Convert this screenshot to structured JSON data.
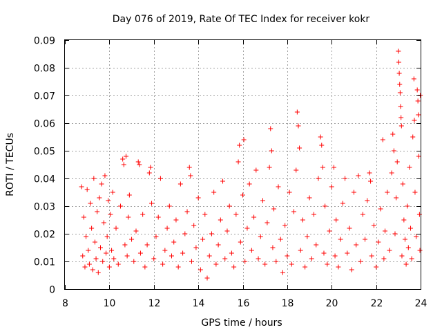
{
  "chart_data": {
    "type": "scatter",
    "title": "Day 076 of 2019, Rate Of TEC Index for receiver kokr",
    "xlabel": "GPS time / hours",
    "ylabel": "ROTI / TECUs",
    "xlim": [
      8,
      24
    ],
    "ylim": [
      0,
      0.09
    ],
    "xticks": [
      8,
      10,
      12,
      14,
      16,
      18,
      20,
      22,
      24
    ],
    "xtick_labels": [
      "8",
      "10",
      "12",
      "14",
      "16",
      "18",
      "20",
      "22",
      "24"
    ],
    "yticks": [
      0,
      0.01,
      0.02,
      0.03,
      0.04,
      0.05,
      0.06,
      0.07,
      0.08,
      0.09
    ],
    "ytick_labels": [
      "0",
      "0.01",
      "0.02",
      "0.03",
      "0.04",
      "0.05",
      "0.06",
      "0.07",
      "0.08",
      "0.09"
    ],
    "grid": true,
    "marker": "+",
    "color": "#ff0000",
    "series": [
      {
        "name": "ROTI",
        "points": [
          [
            8.75,
            0.037
          ],
          [
            8.8,
            0.012
          ],
          [
            8.85,
            0.026
          ],
          [
            8.9,
            0.008
          ],
          [
            8.95,
            0.019
          ],
          [
            9.0,
            0.036
          ],
          [
            9.05,
            0.014
          ],
          [
            9.1,
            0.009
          ],
          [
            9.15,
            0.031
          ],
          [
            9.2,
            0.022
          ],
          [
            9.25,
            0.007
          ],
          [
            9.3,
            0.04
          ],
          [
            9.35,
            0.017
          ],
          [
            9.4,
            0.011
          ],
          [
            9.45,
            0.028
          ],
          [
            9.5,
            0.006
          ],
          [
            9.55,
            0.033
          ],
          [
            9.6,
            0.015
          ],
          [
            9.65,
            0.038
          ],
          [
            9.7,
            0.01
          ],
          [
            9.75,
            0.024
          ],
          [
            9.8,
            0.041
          ],
          [
            9.85,
            0.013
          ],
          [
            9.9,
            0.019
          ],
          [
            9.95,
            0.032
          ],
          [
            10.0,
            0.008
          ],
          [
            10.05,
            0.027
          ],
          [
            10.1,
            0.014
          ],
          [
            10.15,
            0.035
          ],
          [
            10.2,
            0.011
          ],
          [
            10.3,
            0.022
          ],
          [
            10.4,
            0.009
          ],
          [
            10.5,
            0.03
          ],
          [
            10.6,
            0.047
          ],
          [
            10.65,
            0.045
          ],
          [
            10.7,
            0.016
          ],
          [
            10.75,
            0.048
          ],
          [
            10.8,
            0.012
          ],
          [
            10.85,
            0.026
          ],
          [
            10.9,
            0.034
          ],
          [
            11.0,
            0.018
          ],
          [
            11.1,
            0.01
          ],
          [
            11.2,
            0.021
          ],
          [
            11.3,
            0.046
          ],
          [
            11.35,
            0.045
          ],
          [
            11.4,
            0.013
          ],
          [
            11.5,
            0.027
          ],
          [
            11.6,
            0.008
          ],
          [
            11.7,
            0.016
          ],
          [
            11.8,
            0.042
          ],
          [
            11.85,
            0.044
          ],
          [
            11.9,
            0.031
          ],
          [
            12.0,
            0.011
          ],
          [
            12.1,
            0.019
          ],
          [
            12.2,
            0.026
          ],
          [
            12.3,
            0.04
          ],
          [
            12.4,
            0.009
          ],
          [
            12.5,
            0.014
          ],
          [
            12.6,
            0.022
          ],
          [
            12.7,
            0.03
          ],
          [
            12.8,
            0.012
          ],
          [
            12.9,
            0.017
          ],
          [
            13.0,
            0.025
          ],
          [
            13.1,
            0.008
          ],
          [
            13.2,
            0.038
          ],
          [
            13.3,
            0.013
          ],
          [
            13.4,
            0.02
          ],
          [
            13.5,
            0.028
          ],
          [
            13.6,
            0.044
          ],
          [
            13.65,
            0.041
          ],
          [
            13.7,
            0.01
          ],
          [
            13.8,
            0.023
          ],
          [
            13.9,
            0.015
          ],
          [
            14.0,
            0.033
          ],
          [
            14.1,
            0.007
          ],
          [
            14.2,
            0.018
          ],
          [
            14.3,
            0.027
          ],
          [
            14.4,
            0.004
          ],
          [
            14.5,
            0.012
          ],
          [
            14.6,
            0.02
          ],
          [
            14.7,
            0.035
          ],
          [
            14.8,
            0.009
          ],
          [
            14.9,
            0.016
          ],
          [
            15.0,
            0.025
          ],
          [
            15.1,
            0.039
          ],
          [
            15.2,
            0.011
          ],
          [
            15.3,
            0.021
          ],
          [
            15.4,
            0.03
          ],
          [
            15.5,
            0.013
          ],
          [
            15.6,
            0.008
          ],
          [
            15.7,
            0.027
          ],
          [
            15.8,
            0.046
          ],
          [
            15.85,
            0.052
          ],
          [
            15.9,
            0.017
          ],
          [
            16.0,
            0.034
          ],
          [
            16.05,
            0.054
          ],
          [
            16.1,
            0.01
          ],
          [
            16.2,
            0.022
          ],
          [
            16.3,
            0.038
          ],
          [
            16.4,
            0.014
          ],
          [
            16.5,
            0.026
          ],
          [
            16.6,
            0.043
          ],
          [
            16.7,
            0.011
          ],
          [
            16.8,
            0.019
          ],
          [
            16.9,
            0.032
          ],
          [
            17.0,
            0.009
          ],
          [
            17.1,
            0.024
          ],
          [
            17.2,
            0.044
          ],
          [
            17.25,
            0.058
          ],
          [
            17.3,
            0.05
          ],
          [
            17.35,
            0.015
          ],
          [
            17.4,
            0.029
          ],
          [
            17.5,
            0.01
          ],
          [
            17.6,
            0.037
          ],
          [
            17.7,
            0.018
          ],
          [
            17.8,
            0.006
          ],
          [
            17.9,
            0.023
          ],
          [
            18.0,
            0.012
          ],
          [
            18.1,
            0.035
          ],
          [
            18.2,
            0.009
          ],
          [
            18.3,
            0.028
          ],
          [
            18.4,
            0.043
          ],
          [
            18.45,
            0.064
          ],
          [
            18.5,
            0.059
          ],
          [
            18.55,
            0.051
          ],
          [
            18.6,
            0.014
          ],
          [
            18.7,
            0.025
          ],
          [
            18.8,
            0.008
          ],
          [
            18.9,
            0.019
          ],
          [
            19.0,
            0.033
          ],
          [
            19.1,
            0.011
          ],
          [
            19.2,
            0.027
          ],
          [
            19.3,
            0.016
          ],
          [
            19.4,
            0.04
          ],
          [
            19.5,
            0.055
          ],
          [
            19.55,
            0.052
          ],
          [
            19.6,
            0.044
          ],
          [
            19.65,
            0.013
          ],
          [
            19.7,
            0.03
          ],
          [
            19.8,
            0.009
          ],
          [
            19.9,
            0.021
          ],
          [
            20.0,
            0.037
          ],
          [
            20.1,
            0.044
          ],
          [
            20.15,
            0.012
          ],
          [
            20.2,
            0.025
          ],
          [
            20.3,
            0.008
          ],
          [
            20.4,
            0.018
          ],
          [
            20.5,
            0.031
          ],
          [
            20.6,
            0.04
          ],
          [
            20.7,
            0.013
          ],
          [
            20.8,
            0.022
          ],
          [
            20.9,
            0.007
          ],
          [
            21.0,
            0.035
          ],
          [
            21.1,
            0.016
          ],
          [
            21.2,
            0.041
          ],
          [
            21.3,
            0.01
          ],
          [
            21.4,
            0.027
          ],
          [
            21.5,
            0.018
          ],
          [
            21.6,
            0.032
          ],
          [
            21.7,
            0.042
          ],
          [
            21.75,
            0.039
          ],
          [
            21.8,
            0.012
          ],
          [
            21.9,
            0.023
          ],
          [
            22.0,
            0.008
          ],
          [
            22.1,
            0.017
          ],
          [
            22.2,
            0.029
          ],
          [
            22.3,
            0.054
          ],
          [
            22.35,
            0.011
          ],
          [
            22.4,
            0.021
          ],
          [
            22.5,
            0.035
          ],
          [
            22.6,
            0.014
          ],
          [
            22.7,
            0.042
          ],
          [
            22.75,
            0.056
          ],
          [
            22.8,
            0.05
          ],
          [
            22.85,
            0.02
          ],
          [
            22.9,
            0.033
          ],
          [
            22.95,
            0.046
          ],
          [
            23.0,
            0.086
          ],
          [
            23.02,
            0.082
          ],
          [
            23.04,
            0.078
          ],
          [
            23.06,
            0.074
          ],
          [
            23.08,
            0.071
          ],
          [
            23.1,
            0.066
          ],
          [
            23.12,
            0.062
          ],
          [
            23.14,
            0.059
          ],
          [
            23.16,
            0.012
          ],
          [
            23.2,
            0.038
          ],
          [
            23.25,
            0.025
          ],
          [
            23.3,
            0.018
          ],
          [
            23.35,
            0.009
          ],
          [
            23.4,
            0.03
          ],
          [
            23.45,
            0.015
          ],
          [
            23.5,
            0.044
          ],
          [
            23.55,
            0.022
          ],
          [
            23.6,
            0.011
          ],
          [
            23.65,
            0.055
          ],
          [
            23.7,
            0.076
          ],
          [
            23.72,
            0.061
          ],
          [
            23.75,
            0.035
          ],
          [
            23.8,
            0.019
          ],
          [
            23.85,
            0.072
          ],
          [
            23.88,
            0.068
          ],
          [
            23.9,
            0.063
          ],
          [
            23.92,
            0.048
          ],
          [
            23.95,
            0.027
          ],
          [
            23.97,
            0.014
          ],
          [
            23.99,
            0.07
          ]
        ]
      }
    ]
  }
}
